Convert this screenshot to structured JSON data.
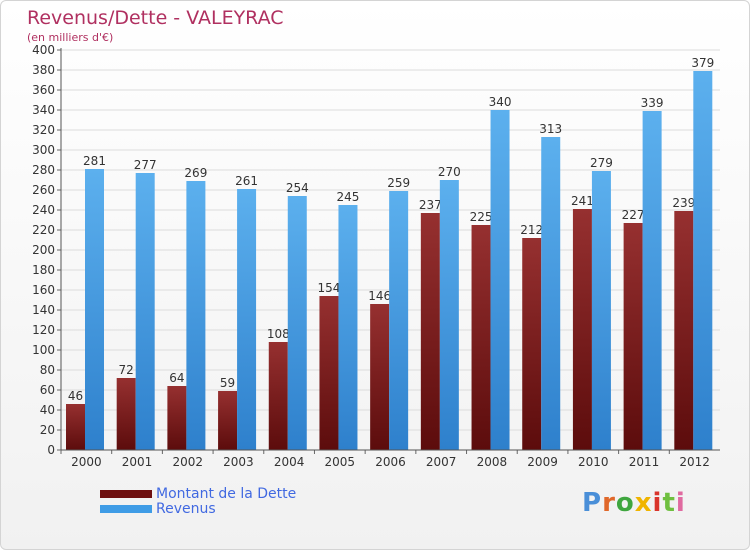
{
  "chart_data": {
    "type": "bar",
    "title": "Revenus/Dette - VALEYRAC",
    "subtitle": "(en milliers d'€)",
    "categories": [
      "2000",
      "2001",
      "2002",
      "2003",
      "2004",
      "2005",
      "2006",
      "2007",
      "2008",
      "2009",
      "2010",
      "2011",
      "2012"
    ],
    "series": [
      {
        "name": "Montant de la Dette",
        "color": "#7a1a1a",
        "values": [
          46,
          72,
          64,
          59,
          108,
          154,
          146,
          237,
          225,
          212,
          241,
          227,
          239
        ]
      },
      {
        "name": "Revenus",
        "color": "#3f9ce6",
        "values": [
          281,
          277,
          269,
          261,
          254,
          245,
          259,
          270,
          340,
          313,
          279,
          339,
          379
        ]
      }
    ],
    "ylim": [
      0,
      400
    ],
    "yticks": [
      0,
      20,
      40,
      60,
      80,
      100,
      120,
      140,
      160,
      180,
      200,
      220,
      240,
      260,
      280,
      300,
      320,
      340,
      360,
      380,
      400
    ],
    "grid": true,
    "legend": "bottom-left"
  },
  "logo": {
    "text": "Proxiti",
    "colors": [
      "#4a8fd8",
      "#e0682a",
      "#3fa63f",
      "#f0b400",
      "#d9342b",
      "#6fbf3f",
      "#e06aa0"
    ]
  }
}
